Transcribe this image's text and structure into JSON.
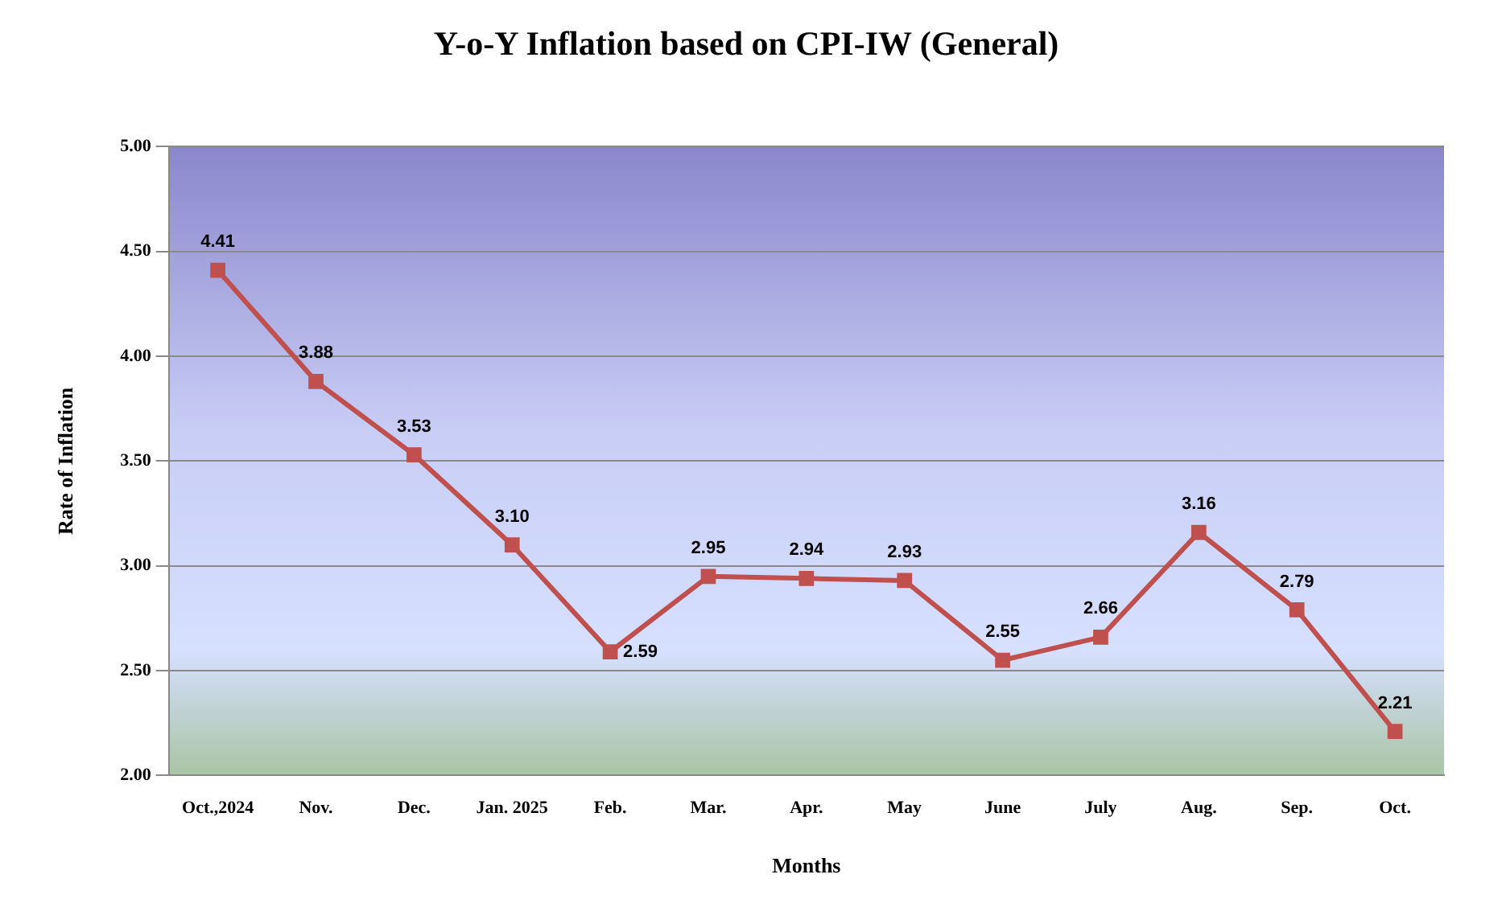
{
  "chart_data": {
    "type": "line",
    "title": "Y-o-Y Inflation based on CPI-IW (General)",
    "xlabel": "Months",
    "ylabel": "Rate of Inflation",
    "categories": [
      "Oct.,2024",
      "Nov.",
      "Dec.",
      "Jan. 2025",
      "Feb.",
      "Mar.",
      "Apr.",
      "May",
      "June",
      "July",
      "Aug.",
      "Sep.",
      "Oct."
    ],
    "series": [
      {
        "color": "#c0504d",
        "values": [
          4.41,
          3.88,
          3.53,
          3.1,
          2.59,
          2.95,
          2.94,
          2.93,
          2.55,
          2.66,
          3.16,
          2.79,
          2.21
        ],
        "value_labels": [
          "4.41",
          "3.88",
          "3.53",
          "3.10",
          "2.59",
          "2.95",
          "2.94",
          "2.93",
          "2.55",
          "2.66",
          "3.16",
          "2.79",
          "2.21"
        ]
      }
    ],
    "ylim": [
      2,
      5
    ],
    "yticks": [
      {
        "value": 2,
        "label": "2.00"
      },
      {
        "value": 2.5,
        "label": "2.50"
      },
      {
        "value": 3,
        "label": "3.00"
      },
      {
        "value": 3.5,
        "label": "3.50"
      },
      {
        "value": 4,
        "label": "4.00"
      },
      {
        "value": 4.5,
        "label": "4.50"
      },
      {
        "value": 5,
        "label": "5.00"
      }
    ],
    "grid": "y",
    "legend": false,
    "marker": "square",
    "line_style": "solid"
  }
}
